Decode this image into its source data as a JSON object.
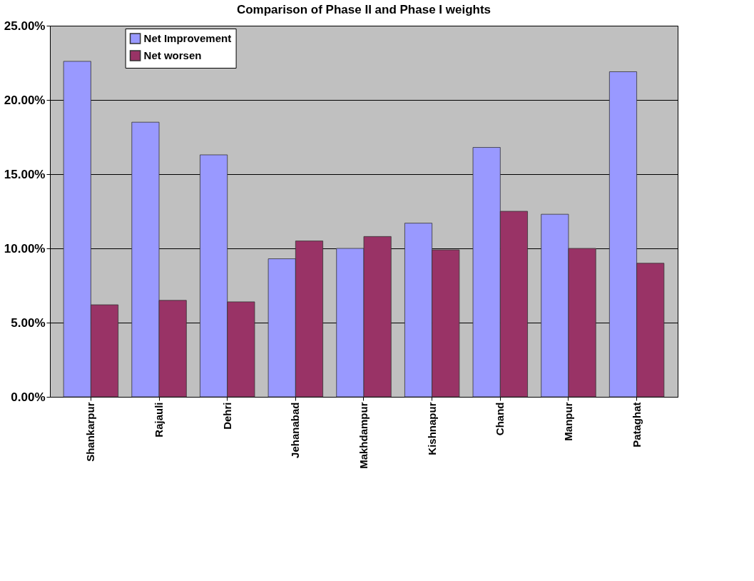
{
  "chart_data": {
    "type": "bar",
    "title": "Comparison of Phase II and Phase I weights",
    "categories": [
      "Shankarpur",
      "Rajauli",
      "Dehri",
      "Jehanabad",
      "Makhdampur",
      "Kishnapur",
      "Chand",
      "Manpur",
      "Pataghat"
    ],
    "series": [
      {
        "name": "Net Improvement",
        "color": "#9999ff",
        "values": [
          22.6,
          18.5,
          16.3,
          9.3,
          10.0,
          11.7,
          16.8,
          12.3,
          21.9
        ]
      },
      {
        "name": "Net worsen",
        "color": "#993366",
        "values": [
          6.2,
          6.5,
          6.4,
          10.5,
          10.8,
          9.9,
          12.5,
          10.0,
          9.0
        ]
      }
    ],
    "ylim": [
      0,
      25
    ],
    "yticks": [
      {
        "value": 0,
        "label": "0.00%"
      },
      {
        "value": 5,
        "label": "5.00%"
      },
      {
        "value": 10,
        "label": "10.00%"
      },
      {
        "value": 15,
        "label": "15.00%"
      },
      {
        "value": 20,
        "label": "20.00%"
      },
      {
        "value": 25,
        "label": "25.00%"
      }
    ],
    "grid": "y",
    "legend": "top left"
  }
}
